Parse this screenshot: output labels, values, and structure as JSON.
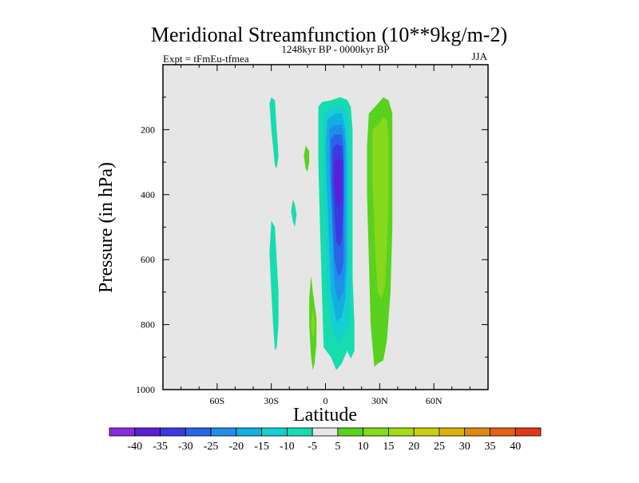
{
  "chart_data": {
    "type": "contour",
    "title": "Meridional Streamfunction (10**9kg/m-2)",
    "subtitle_left": "Expt = tFmEu-tfmea",
    "subtitle_center": "1248kyr BP - 0000kyr BP",
    "subtitle_right": "JJA",
    "xlabel": "Latitude",
    "ylabel": "Pressure (in hPa)",
    "xlim": [
      -90,
      90
    ],
    "ylim": [
      0,
      1000
    ],
    "y_inverted": true,
    "x_ticks": [
      {
        "value": -60,
        "label": "60S"
      },
      {
        "value": -30,
        "label": "30S"
      },
      {
        "value": 0,
        "label": "0"
      },
      {
        "value": 30,
        "label": "30N"
      },
      {
        "value": 60,
        "label": "60N"
      }
    ],
    "y_ticks": [
      {
        "value": 200,
        "label": "200"
      },
      {
        "value": 400,
        "label": "400"
      },
      {
        "value": 600,
        "label": "600"
      },
      {
        "value": 800,
        "label": "800"
      },
      {
        "value": 1000,
        "label": "1000"
      }
    ],
    "background_color": "#e6e6e6",
    "colorbar": {
      "levels": [
        "-40",
        "-35",
        "-30",
        "-25",
        "-20",
        "-15",
        "-10",
        "-5",
        "5",
        "10",
        "15",
        "20",
        "25",
        "30",
        "35",
        "40"
      ],
      "colors": [
        "#8a2be2",
        "#5a1fd6",
        "#3a3ae0",
        "#2a62e8",
        "#1f8ee8",
        "#12b0e0",
        "#14d0d0",
        "#16dcae",
        "#e6e6e6",
        "#58d21e",
        "#86d81c",
        "#a6dc14",
        "#c8d00e",
        "#dab00c",
        "#dc8a10",
        "#e06414",
        "#e03a14"
      ]
    },
    "regions": [
      {
        "name": "neg-5-a",
        "value": -7,
        "points": [
          [
            -30,
            100
          ],
          [
            -28,
            110
          ],
          [
            -27,
            200
          ],
          [
            -26,
            280
          ],
          [
            -27,
            320
          ],
          [
            -28,
            310
          ],
          [
            -30,
            200
          ],
          [
            -31,
            120
          ]
        ]
      },
      {
        "name": "neg-5-b",
        "value": -7,
        "points": [
          [
            -30,
            480
          ],
          [
            -28,
            500
          ],
          [
            -27,
            600
          ],
          [
            -26,
            700
          ],
          [
            -26,
            800
          ],
          [
            -27,
            870
          ],
          [
            -28,
            880
          ],
          [
            -29,
            800
          ],
          [
            -30,
            700
          ],
          [
            -31,
            580
          ]
        ]
      },
      {
        "name": "neg-5-c",
        "value": -7,
        "points": [
          [
            -18,
            415
          ],
          [
            -17,
            430
          ],
          [
            -16,
            460
          ],
          [
            -17,
            500
          ],
          [
            -18,
            485
          ],
          [
            -19,
            450
          ]
        ]
      },
      {
        "name": "pos-5-a",
        "value": 7,
        "points": [
          [
            -11,
            250
          ],
          [
            -9,
            265
          ],
          [
            -9,
            300
          ],
          [
            -10,
            330
          ],
          [
            -11,
            320
          ],
          [
            -12,
            280
          ]
        ]
      },
      {
        "name": "pos-5-b",
        "value": 7,
        "points": [
          [
            -8,
            650
          ],
          [
            -7,
            700
          ],
          [
            -5,
            780
          ],
          [
            -5,
            860
          ],
          [
            -6,
            920
          ],
          [
            -7,
            940
          ],
          [
            -8,
            900
          ],
          [
            -9,
            800
          ],
          [
            -9,
            720
          ]
        ]
      },
      {
        "name": "pos-10-a",
        "value": 12,
        "points": [
          [
            -7,
            750
          ],
          [
            -6,
            780
          ],
          [
            -6,
            830
          ],
          [
            -7,
            840
          ],
          [
            -8,
            800
          ]
        ]
      },
      {
        "name": "neg-core-5",
        "value": -7,
        "points": [
          [
            -4,
            130
          ],
          [
            -2,
            115
          ],
          [
            3,
            110
          ],
          [
            8,
            100
          ],
          [
            12,
            108
          ],
          [
            14,
            130
          ],
          [
            15,
            200
          ],
          [
            15,
            350
          ],
          [
            15,
            500
          ],
          [
            15,
            650
          ],
          [
            16,
            800
          ],
          [
            16,
            880
          ],
          [
            14,
            905
          ],
          [
            12,
            880
          ],
          [
            9,
            920
          ],
          [
            6,
            940
          ],
          [
            3,
            900
          ],
          [
            -1,
            870
          ],
          [
            -2,
            700
          ],
          [
            -3,
            500
          ],
          [
            -4,
            300
          ]
        ]
      },
      {
        "name": "neg-core-10",
        "value": -12,
        "points": [
          [
            -1,
            150
          ],
          [
            3,
            130
          ],
          [
            9,
            125
          ],
          [
            12,
            150
          ],
          [
            13,
            250
          ],
          [
            13,
            400
          ],
          [
            13,
            550
          ],
          [
            14,
            700
          ],
          [
            13,
            800
          ],
          [
            10,
            830
          ],
          [
            7,
            860
          ],
          [
            4,
            820
          ],
          [
            1,
            700
          ],
          [
            0,
            500
          ],
          [
            -1,
            300
          ]
        ]
      },
      {
        "name": "neg-core-15",
        "value": -17,
        "points": [
          [
            1,
            170
          ],
          [
            5,
            150
          ],
          [
            9,
            150
          ],
          [
            11,
            200
          ],
          [
            12,
            300
          ],
          [
            12,
            450
          ],
          [
            12,
            600
          ],
          [
            11,
            720
          ],
          [
            9,
            780
          ],
          [
            6,
            790
          ],
          [
            3,
            700
          ],
          [
            2,
            550
          ],
          [
            1,
            400
          ],
          [
            0,
            250
          ]
        ]
      },
      {
        "name": "neg-core-20",
        "value": -22,
        "points": [
          [
            2,
            200
          ],
          [
            5,
            185
          ],
          [
            9,
            185
          ],
          [
            11,
            240
          ],
          [
            11,
            350
          ],
          [
            11,
            500
          ],
          [
            11,
            620
          ],
          [
            10,
            700
          ],
          [
            7,
            730
          ],
          [
            5,
            680
          ],
          [
            4,
            550
          ],
          [
            3,
            400
          ],
          [
            2,
            280
          ]
        ]
      },
      {
        "name": "neg-core-25",
        "value": -27,
        "points": [
          [
            3,
            230
          ],
          [
            5,
            215
          ],
          [
            9,
            215
          ],
          [
            10,
            260
          ],
          [
            10,
            350
          ],
          [
            10,
            480
          ],
          [
            10,
            600
          ],
          [
            9,
            640
          ],
          [
            7,
            650
          ],
          [
            5,
            600
          ],
          [
            4,
            480
          ],
          [
            3,
            360
          ]
        ]
      },
      {
        "name": "neg-core-30",
        "value": -32,
        "points": [
          [
            4,
            260
          ],
          [
            6,
            245
          ],
          [
            9,
            250
          ],
          [
            10,
            300
          ],
          [
            10,
            420
          ],
          [
            9,
            530
          ],
          [
            8,
            560
          ],
          [
            6,
            545
          ],
          [
            5,
            460
          ],
          [
            4,
            360
          ]
        ]
      },
      {
        "name": "neg-core-35",
        "value": -37,
        "points": [
          [
            5,
            300
          ],
          [
            7,
            285
          ],
          [
            8.5,
            300
          ],
          [
            9,
            360
          ],
          [
            8.5,
            420
          ],
          [
            7,
            440
          ],
          [
            6,
            420
          ],
          [
            5,
            370
          ]
        ]
      },
      {
        "name": "pos-east-5",
        "value": 7,
        "points": [
          [
            24,
            150
          ],
          [
            29,
            120
          ],
          [
            32,
            100
          ],
          [
            35,
            110
          ],
          [
            37,
            150
          ],
          [
            37,
            300
          ],
          [
            37,
            500
          ],
          [
            36,
            700
          ],
          [
            34,
            850
          ],
          [
            32,
            910
          ],
          [
            29,
            920
          ],
          [
            27,
            930
          ],
          [
            25,
            800
          ],
          [
            24,
            600
          ],
          [
            23,
            400
          ],
          [
            23,
            250
          ]
        ]
      },
      {
        "name": "pos-east-10",
        "value": 12,
        "points": [
          [
            26,
            200
          ],
          [
            30,
            180
          ],
          [
            32,
            160
          ],
          [
            34,
            170
          ],
          [
            35,
            230
          ],
          [
            35,
            400
          ],
          [
            34,
            560
          ],
          [
            33,
            680
          ],
          [
            31,
            720
          ],
          [
            29,
            700
          ],
          [
            28,
            620
          ],
          [
            27,
            500
          ],
          [
            26,
            350
          ]
        ]
      }
    ]
  }
}
